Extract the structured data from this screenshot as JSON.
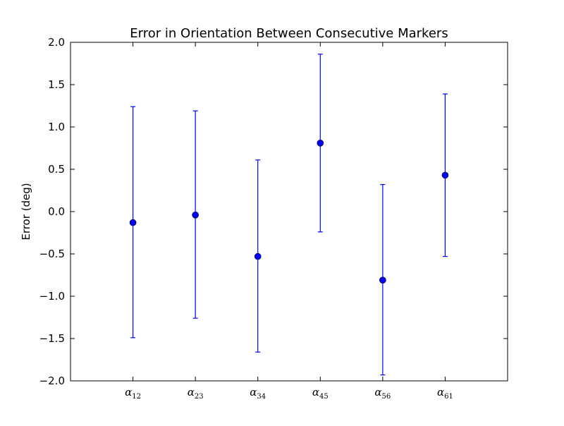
{
  "chart_data": {
    "type": "scatter",
    "title": "Error in Orientation Between Consecutive Markers",
    "xlabel": "",
    "ylabel": "Error (deg)",
    "categories": [
      "α12",
      "α23",
      "α34",
      "α45",
      "α56",
      "α61"
    ],
    "category_symbol": "α",
    "category_subscripts": [
      "12",
      "23",
      "34",
      "45",
      "56",
      "61"
    ],
    "values": [
      -0.13,
      -0.04,
      -0.53,
      0.81,
      -0.81,
      0.43
    ],
    "error_low": [
      -1.49,
      -1.26,
      -1.66,
      -0.24,
      -1.93,
      -0.53
    ],
    "error_high": [
      1.24,
      1.19,
      0.61,
      1.86,
      0.32,
      1.39
    ],
    "ylim": [
      -2.0,
      2.0
    ],
    "yticks": [
      -2.0,
      -1.5,
      -1.0,
      -0.5,
      0.0,
      0.5,
      1.0,
      1.5,
      2.0
    ],
    "ytick_labels": [
      "−2.0",
      "−1.5",
      "−1.0",
      "−0.5",
      "0.0",
      "0.5",
      "1.0",
      "1.5",
      "2.0"
    ],
    "grid": false,
    "legend": "none",
    "color": "#0000ff"
  }
}
